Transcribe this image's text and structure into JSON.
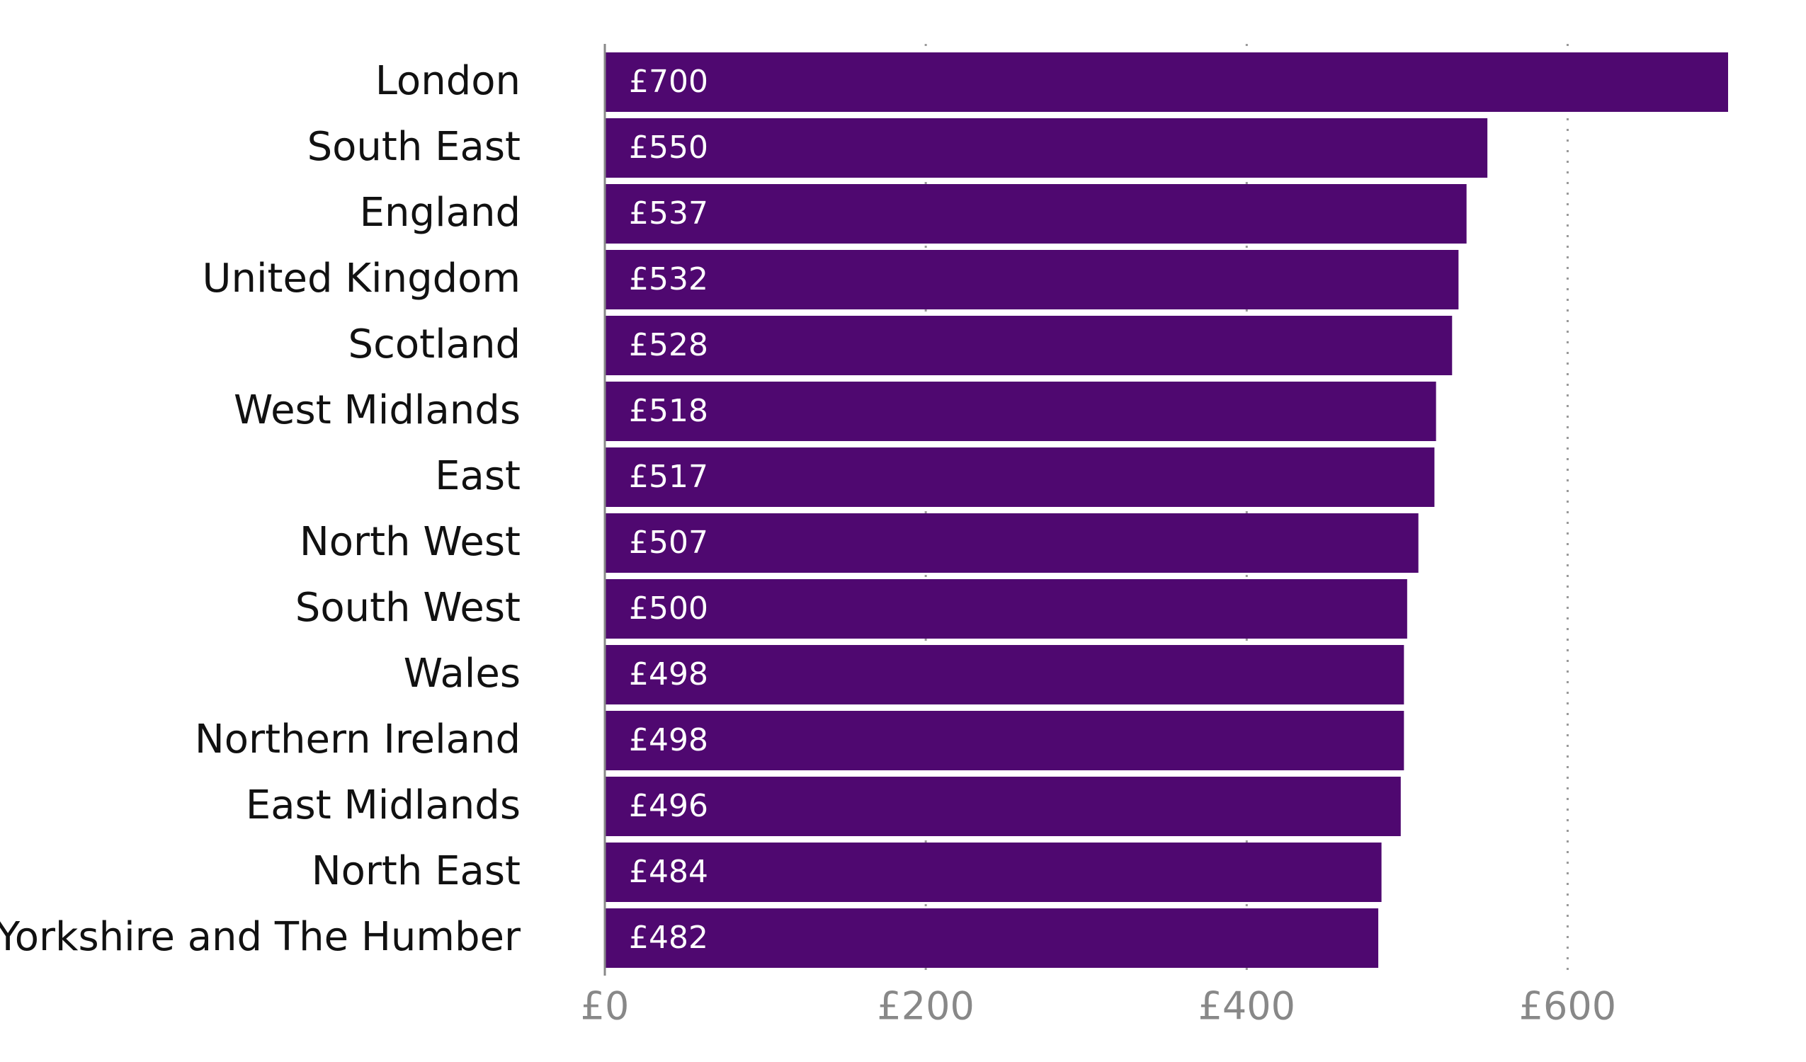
{
  "chart_data": {
    "type": "bar",
    "orientation": "horizontal",
    "categories": [
      "London",
      "South East",
      "England",
      "United Kingdom",
      "Scotland",
      "West Midlands",
      "East",
      "North West",
      "South West",
      "Wales",
      "Northern Ireland",
      "East Midlands",
      "North East",
      "Yorkshire and The Humber"
    ],
    "values": [
      700,
      550,
      537,
      532,
      528,
      518,
      517,
      507,
      500,
      498,
      498,
      496,
      484,
      482
    ],
    "value_labels": [
      "£700",
      "£550",
      "£537",
      "£532",
      "£528",
      "£518",
      "£517",
      "£507",
      "£500",
      "£498",
      "£498",
      "£496",
      "£484",
      "£482"
    ],
    "color": "#4f0870",
    "xlim": [
      0,
      700
    ],
    "xticks": [
      {
        "value": 0,
        "label": "£0"
      },
      {
        "value": 200,
        "label": "£200"
      },
      {
        "value": 400,
        "label": "£400"
      },
      {
        "value": 600,
        "label": "£600"
      }
    ],
    "grid": true
  }
}
